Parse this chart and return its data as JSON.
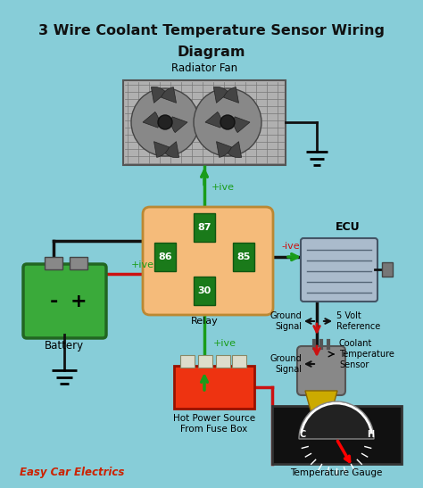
{
  "title_line1": "3 Wire Coolant Temperature Sensor Wiring",
  "title_line2": "Diagram",
  "bg_color": "#87cdd8",
  "title_color": "#111111",
  "title_fontsize": 11.5,
  "relay_color": "#f5bb7a",
  "wire_green": "#1a9c1a",
  "wire_red": "#cc1111",
  "wire_black": "#111111",
  "brand_color": "#cc2200",
  "brand_text": "Easy Car Electrics"
}
